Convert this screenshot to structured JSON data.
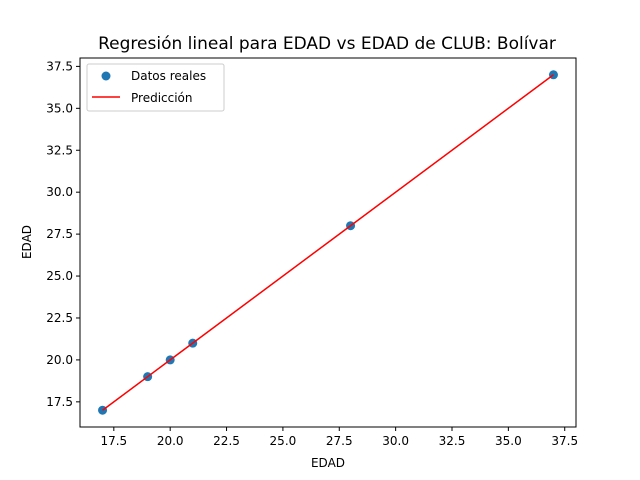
{
  "chart_data": {
    "type": "scatter",
    "title": "Regresión lineal para EDAD vs EDAD de CLUB: Bolívar",
    "xlabel": "EDAD",
    "ylabel": "EDAD",
    "xlim": [
      16.0,
      38.0
    ],
    "ylim": [
      16.0,
      38.0
    ],
    "xticks": [
      17.5,
      20.0,
      22.5,
      25.0,
      27.5,
      30.0,
      32.5,
      35.0,
      37.5
    ],
    "xtick_labels": [
      "17.5",
      "20.0",
      "22.5",
      "25.0",
      "27.5",
      "30.0",
      "32.5",
      "35.0",
      "37.5"
    ],
    "yticks": [
      17.5,
      20.0,
      22.5,
      25.0,
      27.5,
      30.0,
      32.5,
      35.0,
      37.5
    ],
    "ytick_labels": [
      "17.5",
      "20.0",
      "22.5",
      "25.0",
      "27.5",
      "30.0",
      "32.5",
      "35.0",
      "37.5"
    ],
    "grid": false,
    "legend_position": "upper-left",
    "series": [
      {
        "name": "Datos reales",
        "kind": "scatter",
        "color": "#1f77b4",
        "x": [
          17,
          19,
          20,
          21,
          28,
          37
        ],
        "y": [
          17,
          19,
          20,
          21,
          28,
          37
        ]
      },
      {
        "name": "Predicción",
        "kind": "line",
        "color": "#ff0000",
        "x": [
          17,
          19,
          20,
          21,
          28,
          37
        ],
        "y": [
          17,
          19,
          20,
          21,
          28,
          37
        ]
      }
    ]
  }
}
